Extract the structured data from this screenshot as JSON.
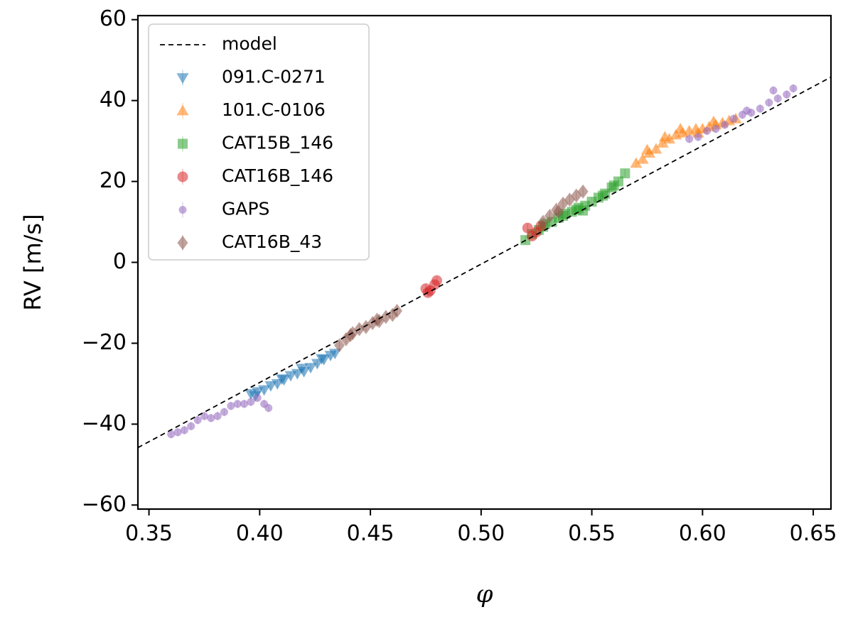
{
  "chart_data": {
    "type": "scatter",
    "title": "",
    "xlabel": "φ",
    "ylabel": "RV [m/s]",
    "xlim": [
      0.345,
      0.658
    ],
    "ylim": [
      -61,
      61
    ],
    "xticks": [
      0.35,
      0.4,
      0.45,
      0.5,
      0.55,
      0.6,
      0.65
    ],
    "xtick_labels": [
      "0.35",
      "0.40",
      "0.45",
      "0.50",
      "0.55",
      "0.60",
      "0.65"
    ],
    "yticks": [
      -60,
      -40,
      -20,
      0,
      20,
      40,
      60
    ],
    "ytick_labels": [
      "−60",
      "−40",
      "−20",
      "0",
      "20",
      "40",
      "60"
    ],
    "grid": false,
    "legend_position": "top-left",
    "model": {
      "name": "model",
      "color": "#000000",
      "style": "dashed",
      "x": [
        0.345,
        0.658
      ],
      "y": [
        -45.8,
        45.8
      ]
    },
    "series": [
      {
        "name": "091.C-0271",
        "marker": "triangle-down",
        "color": "#1f77b4",
        "x": [
          0.396,
          0.399,
          0.402,
          0.405,
          0.408,
          0.411,
          0.414,
          0.417,
          0.42,
          0.423,
          0.426,
          0.429,
          0.432,
          0.434,
          0.398,
          0.41,
          0.419,
          0.428
        ],
        "y": [
          -32.5,
          -32.0,
          -31.5,
          -30.5,
          -30.0,
          -29.0,
          -28.0,
          -27.5,
          -27.0,
          -26.0,
          -25.0,
          -24.0,
          -23.0,
          -22.5,
          -33.0,
          -28.8,
          -26.2,
          -23.8
        ]
      },
      {
        "name": "101.C-0106",
        "marker": "triangle-up",
        "color": "#ff7f0e",
        "x": [
          0.57,
          0.573,
          0.576,
          0.579,
          0.582,
          0.585,
          0.588,
          0.591,
          0.594,
          0.597,
          0.6,
          0.603,
          0.606,
          0.609,
          0.612,
          0.615,
          0.575,
          0.583,
          0.59,
          0.598,
          0.605
        ],
        "y": [
          24.5,
          25.5,
          27.0,
          28.0,
          29.5,
          30.5,
          31.5,
          32.0,
          32.5,
          33.0,
          33.0,
          33.5,
          34.0,
          34.5,
          35.0,
          35.5,
          27.8,
          31.0,
          33.0,
          32.0,
          34.8
        ]
      },
      {
        "name": "CAT15B_146",
        "marker": "square",
        "color": "#2ca02c",
        "x": [
          0.52,
          0.523,
          0.526,
          0.529,
          0.532,
          0.535,
          0.538,
          0.541,
          0.544,
          0.547,
          0.55,
          0.553,
          0.556,
          0.559,
          0.562,
          0.565,
          0.528,
          0.537,
          0.546,
          0.555,
          0.56,
          0.543
        ],
        "y": [
          5.5,
          7.0,
          8.0,
          9.5,
          10.0,
          11.0,
          12.0,
          12.5,
          13.5,
          14.0,
          15.0,
          16.0,
          17.0,
          18.5,
          20.0,
          22.0,
          8.8,
          11.5,
          12.8,
          16.5,
          19.0,
          13.0
        ]
      },
      {
        "name": "CAT16B_146",
        "marker": "circle",
        "color": "#d62728",
        "x": [
          0.475,
          0.477,
          0.479,
          0.48,
          0.521,
          0.523,
          0.525,
          0.527,
          0.476
        ],
        "y": [
          -6.5,
          -7.0,
          -5.5,
          -4.5,
          8.5,
          6.5,
          7.5,
          9.0,
          -7.5
        ]
      },
      {
        "name": "GAPS",
        "marker": "circle-small",
        "color": "#9467bd",
        "x": [
          0.36,
          0.363,
          0.366,
          0.369,
          0.372,
          0.375,
          0.378,
          0.381,
          0.384,
          0.387,
          0.39,
          0.393,
          0.396,
          0.399,
          0.402,
          0.404,
          0.594,
          0.598,
          0.602,
          0.606,
          0.61,
          0.614,
          0.618,
          0.622,
          0.626,
          0.63,
          0.634,
          0.638,
          0.641,
          0.632,
          0.62
        ],
        "y": [
          -42.5,
          -42.0,
          -41.5,
          -40.5,
          -39.0,
          -38.0,
          -38.5,
          -38.0,
          -37.0,
          -35.5,
          -35.0,
          -35.0,
          -34.5,
          -33.5,
          -35.0,
          -36.0,
          30.5,
          31.0,
          32.5,
          33.0,
          34.0,
          35.5,
          36.5,
          37.0,
          38.0,
          39.5,
          40.5,
          41.5,
          43.0,
          42.5,
          37.5
        ]
      },
      {
        "name": "CAT16B_43",
        "marker": "diamond",
        "color": "#8c564b",
        "x": [
          0.436,
          0.439,
          0.442,
          0.445,
          0.448,
          0.451,
          0.454,
          0.457,
          0.46,
          0.462,
          0.528,
          0.531,
          0.534,
          0.537,
          0.54,
          0.543,
          0.546,
          0.441,
          0.453,
          0.535
        ],
        "y": [
          -20.5,
          -19.0,
          -17.5,
          -16.5,
          -16.0,
          -15.0,
          -14.5,
          -13.5,
          -13.0,
          -12.0,
          10.0,
          11.5,
          13.0,
          14.5,
          15.5,
          16.5,
          17.5,
          -18.0,
          -14.2,
          12.5
        ]
      }
    ]
  }
}
